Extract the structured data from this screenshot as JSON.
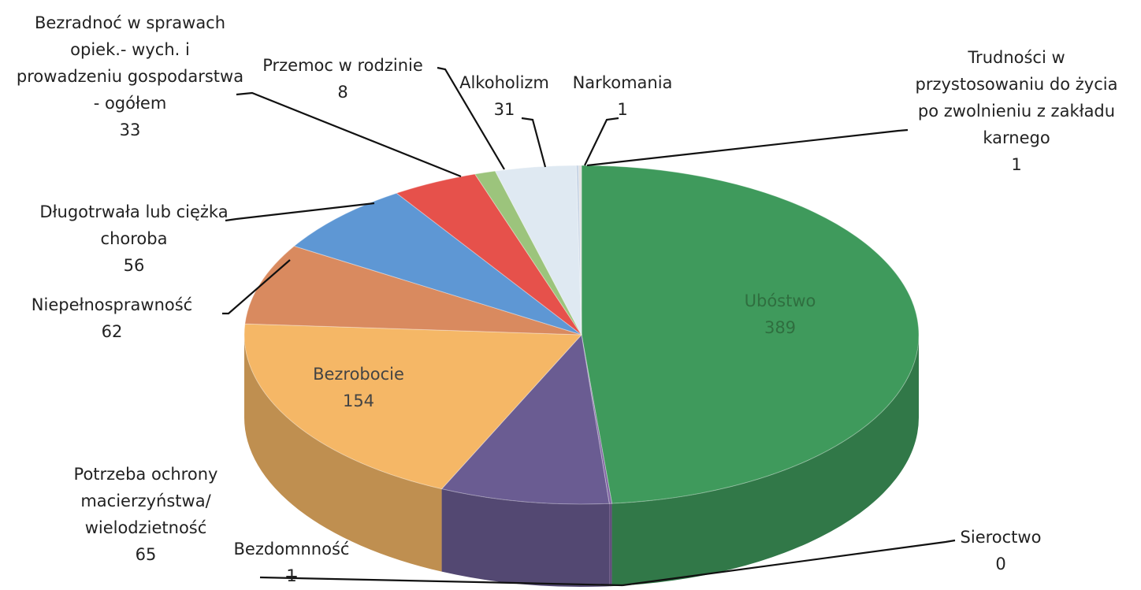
{
  "chart_data": {
    "type": "pie3d",
    "categories": [
      "Ubóstwo",
      "Sieroctwo",
      "Bezdomnność",
      "Potrzeba ochrony macierzyństwa/ wielodzietność",
      "Bezrobocie",
      "Niepełnosprawność",
      "Długotrwała lub ciężka choroba",
      "Bezradnoć w sprawach opiek.- wych. i prowadzeniu gospodarstwa - ogółem",
      "Przemoc w rodzinie",
      "Alkoholizm",
      "Narkomania",
      "Trudności w przystosowaniu do życia po zwolnieniu z zakładu karnego"
    ],
    "values": [
      389,
      0,
      1,
      65,
      154,
      62,
      56,
      33,
      8,
      31,
      1,
      1
    ],
    "colors": [
      "#3f9a5c",
      "#9bbb59",
      "#8064a2",
      "#6a5c92",
      "#f5b766",
      "#d98a5f",
      "#5e97d4",
      "#e6514b",
      "#9cc47c",
      "#dfe9f2",
      "#c9d6e6",
      "#e0e0e0"
    ]
  }
}
